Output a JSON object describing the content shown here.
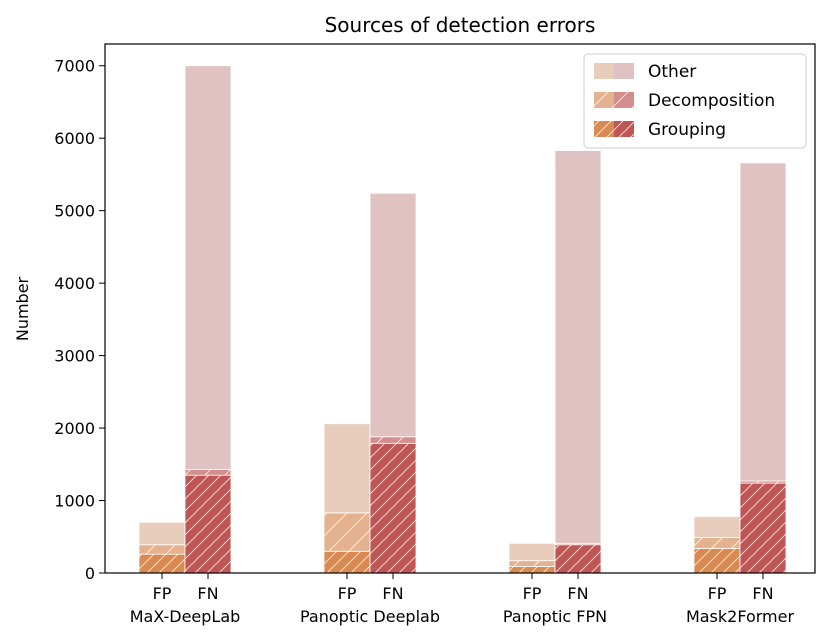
{
  "chart_data": {
    "type": "bar",
    "title": "Sources of detection errors",
    "ylabel": "Number",
    "xlabel": "",
    "ylim": [
      0,
      7300
    ],
    "yticks": [
      0,
      1000,
      2000,
      3000,
      4000,
      5000,
      6000,
      7000
    ],
    "grid": false,
    "legend_placement": "top-right",
    "stacked": true,
    "groups": [
      "MaX-DeepLab",
      "Panoptic Deeplab",
      "Panoptic FPN",
      "Mask2Former"
    ],
    "bar_labels": [
      "FP",
      "FN"
    ],
    "series": [
      {
        "name": "Grouping",
        "fp": [
          260,
          300,
          90,
          340
        ],
        "fn": [
          1350,
          1790,
          390,
          1240
        ]
      },
      {
        "name": "Decomposition",
        "fp": [
          130,
          530,
          80,
          150
        ],
        "fn": [
          80,
          90,
          20,
          30
        ]
      },
      {
        "name": "Other",
        "fp": [
          310,
          1230,
          240,
          290
        ],
        "fn": [
          5570,
          3360,
          5420,
          4390
        ]
      }
    ],
    "colors": {
      "fp": [
        "#d98a52",
        "#e4b28e",
        "#e8cdbd"
      ],
      "fn": [
        "#bf5656",
        "#d48d8d",
        "#e1c2c2"
      ]
    }
  }
}
